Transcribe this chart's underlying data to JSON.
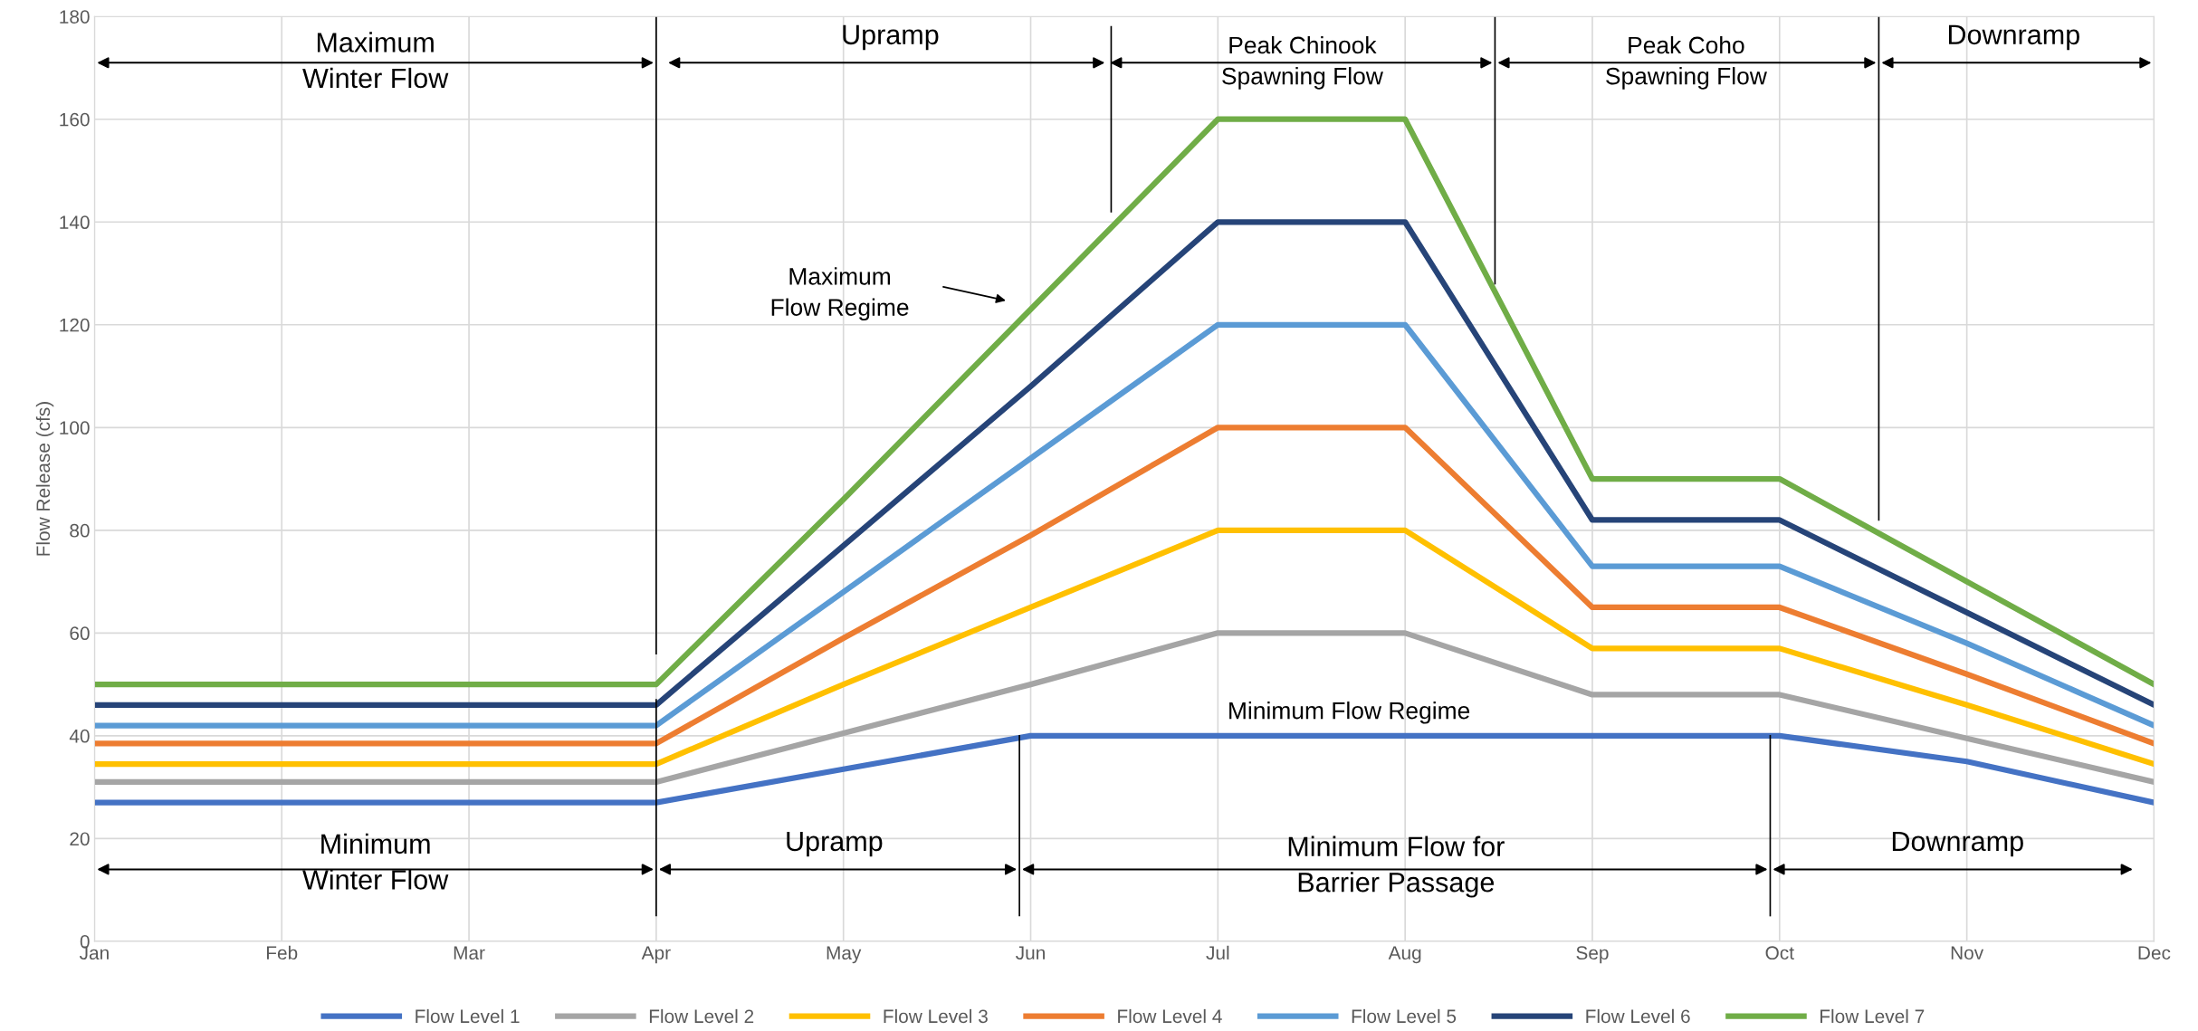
{
  "chart_data": {
    "type": "line",
    "ylabel": "Flow Release (cfs)",
    "categories": [
      "Jan",
      "Feb",
      "Mar",
      "Apr",
      "May",
      "Jun",
      "Jul",
      "Aug",
      "Sep",
      "Oct",
      "Nov",
      "Dec"
    ],
    "series": [
      {
        "name": "Flow Level 1",
        "color": "#4472c4",
        "values": [
          27,
          27,
          27,
          27,
          33.5,
          40,
          40,
          40,
          40,
          40,
          35,
          27
        ]
      },
      {
        "name": "Flow Level 2",
        "color": "#a5a5a5",
        "values": [
          31,
          31,
          31,
          31,
          40.5,
          50,
          60,
          60,
          48,
          48,
          39.5,
          31
        ]
      },
      {
        "name": "Flow Level 3",
        "color": "#ffc000",
        "values": [
          34.5,
          34.5,
          34.5,
          34.5,
          50,
          65,
          80,
          80,
          57,
          57,
          46,
          34.5
        ]
      },
      {
        "name": "Flow Level 4",
        "color": "#ed7d31",
        "values": [
          38.5,
          38.5,
          38.5,
          38.5,
          59,
          79,
          100,
          100,
          65,
          65,
          52,
          38.5
        ]
      },
      {
        "name": "Flow Level 5",
        "color": "#5b9bd5",
        "values": [
          42,
          42,
          42,
          42,
          68,
          94,
          120,
          120,
          73,
          73,
          58,
          42
        ]
      },
      {
        "name": "Flow Level 6",
        "color": "#264478",
        "values": [
          46,
          46,
          46,
          46,
          77,
          108,
          140,
          140,
          82,
          82,
          64,
          46
        ]
      },
      {
        "name": "Flow Level 7",
        "color": "#70ad47",
        "values": [
          50,
          50,
          50,
          50,
          86,
          123,
          160,
          160,
          90,
          90,
          70,
          50
        ]
      }
    ],
    "ylim": [
      0,
      180
    ],
    "yticks": [
      0,
      20,
      40,
      60,
      80,
      100,
      120,
      140,
      160,
      180
    ],
    "grid": true,
    "legend": "bottom",
    "marker": "none",
    "line_style": "solid",
    "annotations": [
      "Maximum\nWinter Flow",
      "Upramp",
      "Peak Chinook\nSpawning Flow",
      "Peak Coho\nSpawning Flow",
      "Downramp",
      "Maximum\nFlow Regime",
      "Minimum Flow Regime",
      "Minimum\nWinter Flow",
      "Upramp",
      "Minimum Flow for\nBarrier Passage",
      "Downramp"
    ]
  }
}
